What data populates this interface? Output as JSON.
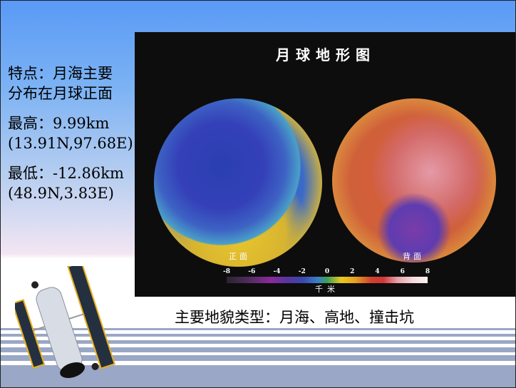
{
  "left_text": {
    "feature": "特点：月海主要分布在月球正面",
    "highest_label": "最高：9.99km",
    "highest_coord": "(13.91N,97.68E)",
    "lowest_label": "最低：-12.86km",
    "lowest_coord": "(48.9N,3.83E)"
  },
  "map": {
    "title": "月球地形图",
    "near_side": "正面",
    "far_side": "背面",
    "colorbar_ticks": [
      "-8",
      "-6",
      "-4",
      "-2",
      "0",
      "2",
      "4",
      "6",
      "8"
    ],
    "colorbar_unit": "千米"
  },
  "caption": "主要地貌类型：月海、高地、撞击坑",
  "colors": {
    "background_top": "#5a9af6",
    "stripes": "#9aa7c6",
    "map_background": "#0e0d0d"
  }
}
